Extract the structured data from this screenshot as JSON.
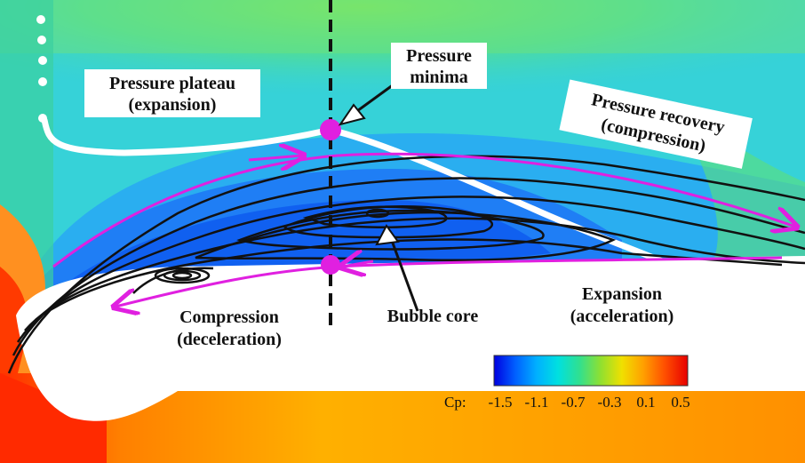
{
  "annotations": {
    "pressure_plateau": [
      "Pressure plateau",
      "(expansion)"
    ],
    "pressure_minima": [
      "Pressure",
      "minima"
    ],
    "pressure_recovery": [
      "Pressure recovery",
      "(compression)"
    ],
    "compression": [
      "Compression",
      "(deceleration)"
    ],
    "bubble_core": "Bubble core",
    "expansion": [
      "Expansion",
      "(acceleration)"
    ]
  },
  "colorbar": {
    "label": "Cp:",
    "ticks": [
      "-1.5",
      "-1.1",
      "-0.7",
      "-0.3",
      "0.1",
      "0.5"
    ],
    "range": [
      -1.5,
      0.5
    ],
    "colormap": [
      "#0000e0",
      "#0060ff",
      "#00b0ff",
      "#00e0e0",
      "#30e090",
      "#90e030",
      "#f0e000",
      "#ffa000",
      "#ff5000",
      "#e80000"
    ]
  },
  "colors": {
    "streamline": "#111111",
    "surface_cp_line": "#ffffff",
    "magenta_arrow": "#e020e0",
    "marker": "#e020e0"
  }
}
